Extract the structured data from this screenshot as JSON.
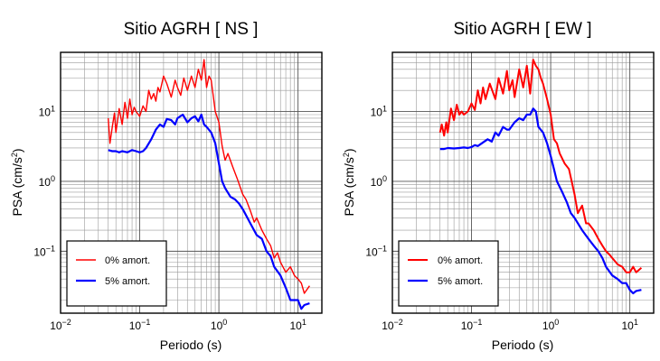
{
  "chart_data": [
    {
      "type": "line",
      "title": "Sitio AGRH [ NS ]",
      "xlabel": "Periodo (s)",
      "ylabel_main": "PSA (cm/s",
      "ylabel_sup": "2",
      "ylabel_close": ")",
      "x_scale": "log",
      "y_scale": "log",
      "xlim": [
        0.01,
        20
      ],
      "ylim": [
        0.013,
        70
      ],
      "grid": true,
      "legend_position": "bottom-left",
      "x_ticks": [
        {
          "value": 0.01,
          "base": "10",
          "exp": "−2"
        },
        {
          "value": 0.1,
          "base": "10",
          "exp": "−1"
        },
        {
          "value": 1,
          "base": "10",
          "exp": "0"
        },
        {
          "value": 10,
          "base": "10",
          "exp": "1"
        }
      ],
      "y_ticks": [
        {
          "value": 0.1,
          "base": "10",
          "exp": "−1"
        },
        {
          "value": 1,
          "base": "10",
          "exp": "0"
        },
        {
          "value": 10,
          "base": "10",
          "exp": "1"
        }
      ],
      "series": [
        {
          "name": "0% amort.",
          "color": "#ff0000",
          "width": 1.4,
          "x": [
            0.04,
            0.042,
            0.045,
            0.048,
            0.05,
            0.055,
            0.06,
            0.065,
            0.07,
            0.075,
            0.08,
            0.085,
            0.09,
            0.1,
            0.11,
            0.12,
            0.13,
            0.14,
            0.15,
            0.16,
            0.17,
            0.18,
            0.2,
            0.22,
            0.25,
            0.28,
            0.3,
            0.33,
            0.36,
            0.4,
            0.45,
            0.5,
            0.55,
            0.6,
            0.65,
            0.7,
            0.75,
            0.8,
            0.9,
            1.0,
            1.1,
            1.2,
            1.3,
            1.5,
            1.7,
            2.0,
            2.2,
            2.5,
            2.8,
            3.0,
            3.5,
            4.0,
            4.5,
            5.0,
            5.5,
            6.0,
            7.0,
            8.0,
            9.0,
            10.0,
            11.0,
            12.0,
            14.0
          ],
          "y": [
            8.0,
            3.5,
            6.0,
            9.5,
            5.0,
            11.0,
            6.5,
            13.5,
            8.0,
            15.0,
            9.0,
            11.5,
            10.0,
            8.5,
            12.0,
            10.0,
            20.0,
            15.0,
            18.0,
            14.0,
            22.0,
            19.0,
            32.0,
            25.0,
            16.0,
            28.0,
            22.0,
            17.0,
            30.0,
            20.0,
            32.0,
            22.0,
            40.0,
            28.0,
            55.0,
            22.0,
            32.0,
            28.0,
            10.0,
            7.0,
            3.2,
            2.0,
            2.5,
            1.6,
            1.1,
            0.65,
            0.55,
            0.38,
            0.26,
            0.3,
            0.2,
            0.15,
            0.12,
            0.08,
            0.095,
            0.07,
            0.05,
            0.06,
            0.045,
            0.04,
            0.035,
            0.025,
            0.032
          ]
        },
        {
          "name": "5% amort.",
          "color": "#0000ff",
          "width": 2.2,
          "x": [
            0.04,
            0.045,
            0.05,
            0.055,
            0.06,
            0.07,
            0.08,
            0.09,
            0.1,
            0.11,
            0.12,
            0.14,
            0.16,
            0.18,
            0.2,
            0.22,
            0.25,
            0.28,
            0.3,
            0.35,
            0.4,
            0.45,
            0.5,
            0.55,
            0.6,
            0.65,
            0.7,
            0.8,
            0.9,
            1.0,
            1.1,
            1.2,
            1.4,
            1.6,
            1.8,
            2.0,
            2.5,
            3.0,
            3.5,
            4.0,
            4.5,
            5.0,
            6.0,
            7.0,
            8.0,
            9.0,
            10.0,
            11.0,
            12.0,
            14.0
          ],
          "y": [
            2.8,
            2.7,
            2.7,
            2.6,
            2.7,
            2.6,
            2.8,
            2.7,
            2.6,
            2.7,
            3.0,
            4.0,
            5.5,
            6.5,
            6.0,
            7.8,
            7.5,
            6.5,
            8.0,
            9.0,
            7.0,
            8.0,
            8.5,
            7.2,
            9.0,
            6.5,
            6.0,
            5.0,
            3.5,
            1.8,
            1.0,
            0.8,
            0.6,
            0.55,
            0.48,
            0.4,
            0.25,
            0.17,
            0.15,
            0.1,
            0.085,
            0.06,
            0.045,
            0.03,
            0.02,
            0.02,
            0.02,
            0.015,
            0.017,
            0.018
          ]
        }
      ]
    },
    {
      "type": "line",
      "title": "Sitio AGRH [ EW ]",
      "xlabel": "Periodo (s)",
      "ylabel_main": "PSA (cm/s",
      "ylabel_sup": "2",
      "ylabel_close": ")",
      "x_scale": "log",
      "y_scale": "log",
      "xlim": [
        0.01,
        20
      ],
      "ylim": [
        0.013,
        70
      ],
      "grid": true,
      "legend_position": "bottom-left",
      "x_ticks": [
        {
          "value": 0.01,
          "base": "10",
          "exp": "−2"
        },
        {
          "value": 0.1,
          "base": "10",
          "exp": "−1"
        },
        {
          "value": 1,
          "base": "10",
          "exp": "0"
        },
        {
          "value": 10,
          "base": "10",
          "exp": "1"
        }
      ],
      "y_ticks": [
        {
          "value": 0.1,
          "base": "10",
          "exp": "−1"
        },
        {
          "value": 1,
          "base": "10",
          "exp": "0"
        },
        {
          "value": 10,
          "base": "10",
          "exp": "1"
        }
      ],
      "series": [
        {
          "name": "0% amort.",
          "color": "#ff0000",
          "width": 2.0,
          "x": [
            0.04,
            0.042,
            0.045,
            0.048,
            0.05,
            0.055,
            0.06,
            0.065,
            0.07,
            0.075,
            0.08,
            0.09,
            0.1,
            0.11,
            0.12,
            0.13,
            0.14,
            0.15,
            0.17,
            0.2,
            0.22,
            0.25,
            0.28,
            0.3,
            0.33,
            0.35,
            0.4,
            0.45,
            0.5,
            0.55,
            0.6,
            0.65,
            0.7,
            0.75,
            0.8,
            0.9,
            1.0,
            1.1,
            1.2,
            1.3,
            1.5,
            1.7,
            2.0,
            2.2,
            2.5,
            2.8,
            3.0,
            3.5,
            4.0,
            4.5,
            5.0,
            5.5,
            6.0,
            7.0,
            8.0,
            9.0,
            10.0,
            11.0,
            12.0,
            14.0
          ],
          "y": [
            5.0,
            6.5,
            4.5,
            7.0,
            5.0,
            11.0,
            7.5,
            12.5,
            9.0,
            10.0,
            9.0,
            10.0,
            13.0,
            10.5,
            20.0,
            13.0,
            22.0,
            15.0,
            25.0,
            15.0,
            30.0,
            18.0,
            38.0,
            20.0,
            28.0,
            16.0,
            40.0,
            22.0,
            45.0,
            18.0,
            55.0,
            45.0,
            40.0,
            30.0,
            25.0,
            15.0,
            9.0,
            4.0,
            3.5,
            2.5,
            1.8,
            1.5,
            0.65,
            0.35,
            0.45,
            0.25,
            0.25,
            0.2,
            0.15,
            0.12,
            0.1,
            0.09,
            0.08,
            0.065,
            0.06,
            0.05,
            0.05,
            0.06,
            0.05,
            0.058
          ]
        },
        {
          "name": "5% amort.",
          "color": "#0000ff",
          "width": 2.2,
          "x": [
            0.04,
            0.045,
            0.05,
            0.06,
            0.07,
            0.08,
            0.09,
            0.1,
            0.11,
            0.12,
            0.14,
            0.16,
            0.18,
            0.2,
            0.22,
            0.25,
            0.28,
            0.3,
            0.35,
            0.4,
            0.45,
            0.5,
            0.55,
            0.6,
            0.65,
            0.7,
            0.8,
            0.9,
            1.0,
            1.1,
            1.2,
            1.4,
            1.6,
            1.8,
            2.0,
            2.5,
            3.0,
            3.5,
            4.0,
            4.5,
            5.0,
            6.0,
            7.0,
            8.0,
            9.0,
            10.0,
            11.0,
            12.0,
            14.0
          ],
          "y": [
            2.9,
            2.9,
            3.0,
            2.95,
            3.0,
            3.05,
            3.0,
            3.1,
            3.3,
            3.2,
            3.6,
            4.0,
            3.7,
            5.0,
            4.5,
            6.0,
            5.5,
            5.5,
            7.0,
            8.0,
            7.5,
            9.0,
            9.0,
            11.0,
            10.0,
            6.0,
            5.0,
            3.5,
            2.3,
            1.5,
            1.0,
            0.7,
            0.5,
            0.35,
            0.3,
            0.2,
            0.15,
            0.12,
            0.1,
            0.08,
            0.06,
            0.045,
            0.04,
            0.035,
            0.035,
            0.028,
            0.025,
            0.027,
            0.028
          ]
        }
      ]
    }
  ]
}
